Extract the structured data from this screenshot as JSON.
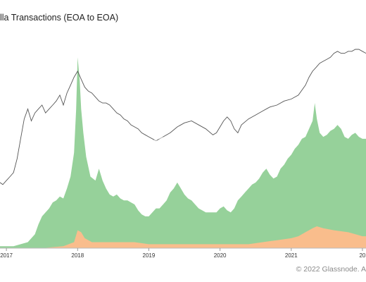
{
  "header": {
    "title": "lla Transactions (EOA to EOA)"
  },
  "watermark": "glassnode",
  "footer": {
    "copyright": "© 2022 Glassnode. A"
  },
  "chart_data": {
    "type": "area",
    "title": "lla Transactions (EOA to EOA)",
    "x_ticks": [
      "2017",
      "2018",
      "2019",
      "2020",
      "2021",
      "20"
    ],
    "x_range": [
      2016.91,
      2022.05
    ],
    "y_axes": {
      "left": {
        "label": "",
        "range": [
          0,
          100
        ]
      },
      "right": {
        "label": "",
        "range": [
          0,
          100
        ]
      }
    },
    "grid": false,
    "legend": "none",
    "series": [
      {
        "type": "area",
        "axis": "left",
        "color": "#96d19a",
        "x": [
          2016.91,
          2017.0,
          2017.1,
          2017.2,
          2017.3,
          2017.4,
          2017.45,
          2017.5,
          2017.55,
          2017.6,
          2017.65,
          2017.7,
          2017.75,
          2017.8,
          2017.85,
          2017.9,
          2017.95,
          2017.98,
          2018.0,
          2018.03,
          2018.05,
          2018.08,
          2018.12,
          2018.18,
          2018.25,
          2018.3,
          2018.35,
          2018.4,
          2018.45,
          2018.5,
          2018.55,
          2018.6,
          2018.65,
          2018.7,
          2018.75,
          2018.8,
          2018.85,
          2018.9,
          2018.95,
          2019.0,
          2019.05,
          2019.1,
          2019.15,
          2019.2,
          2019.25,
          2019.3,
          2019.35,
          2019.4,
          2019.45,
          2019.5,
          2019.55,
          2019.6,
          2019.65,
          2019.7,
          2019.75,
          2019.8,
          2019.85,
          2019.9,
          2019.95,
          2020.0,
          2020.05,
          2020.1,
          2020.15,
          2020.2,
          2020.25,
          2020.3,
          2020.35,
          2020.4,
          2020.45,
          2020.5,
          2020.55,
          2020.6,
          2020.65,
          2020.7,
          2020.75,
          2020.8,
          2020.85,
          2020.9,
          2020.95,
          2021.0,
          2021.05,
          2021.1,
          2021.15,
          2021.2,
          2021.25,
          2021.3,
          2021.33,
          2021.36,
          2021.4,
          2021.45,
          2021.5,
          2021.55,
          2021.6,
          2021.65,
          2021.7,
          2021.75,
          2021.8,
          2021.85,
          2021.9,
          2021.95,
          2022.0,
          2022.05
        ],
        "y": [
          1,
          1,
          1,
          2,
          3,
          7,
          12,
          16,
          18,
          20,
          23,
          24,
          26,
          25,
          30,
          36,
          48,
          70,
          96,
          84,
          70,
          58,
          46,
          36,
          34,
          40,
          34,
          30,
          27,
          26,
          27,
          25,
          24,
          24,
          23,
          22,
          19,
          17,
          16,
          16,
          18,
          20,
          20,
          22,
          24,
          28,
          30,
          33,
          30,
          27,
          25,
          24,
          22,
          20,
          19,
          18,
          18,
          18,
          18,
          20,
          21,
          19,
          18,
          20,
          24,
          26,
          28,
          30,
          32,
          33,
          35,
          38,
          40,
          37,
          35,
          36,
          40,
          42,
          45,
          47,
          50,
          52,
          55,
          56,
          60,
          64,
          73,
          65,
          58,
          56,
          57,
          59,
          60,
          62,
          60,
          56,
          55,
          57,
          58,
          56,
          55,
          55
        ]
      },
      {
        "type": "area",
        "axis": "left",
        "color": "#f9bd8c",
        "x": [
          2016.91,
          2017.5,
          2017.8,
          2017.95,
          2018.0,
          2018.05,
          2018.1,
          2018.2,
          2018.4,
          2018.6,
          2018.8,
          2019.0,
          2019.3,
          2019.6,
          2019.9,
          2020.0,
          2020.2,
          2020.4,
          2020.6,
          2020.8,
          2021.0,
          2021.1,
          2021.2,
          2021.3,
          2021.36,
          2021.45,
          2021.6,
          2021.8,
          2022.0,
          2022.05
        ],
        "y": [
          0,
          0,
          1,
          3,
          9,
          8,
          5,
          3,
          3,
          3,
          3,
          2,
          2,
          2,
          2,
          2,
          2,
          2,
          3,
          4,
          5,
          6,
          8,
          10,
          11,
          10,
          9,
          8,
          6,
          6
        ]
      },
      {
        "type": "line",
        "axis": "right",
        "color": "#555555",
        "x": [
          2016.91,
          2016.95,
          2017.0,
          2017.05,
          2017.1,
          2017.15,
          2017.2,
          2017.25,
          2017.3,
          2017.35,
          2017.4,
          2017.45,
          2017.5,
          2017.55,
          2017.6,
          2017.65,
          2017.7,
          2017.75,
          2017.8,
          2017.85,
          2017.9,
          2017.95,
          2018.0,
          2018.05,
          2018.1,
          2018.15,
          2018.2,
          2018.25,
          2018.3,
          2018.35,
          2018.4,
          2018.45,
          2018.5,
          2018.55,
          2018.6,
          2018.65,
          2018.7,
          2018.75,
          2018.8,
          2018.85,
          2018.9,
          2018.95,
          2019.0,
          2019.1,
          2019.2,
          2019.3,
          2019.4,
          2019.5,
          2019.6,
          2019.7,
          2019.8,
          2019.9,
          2019.95,
          2020.0,
          2020.05,
          2020.1,
          2020.15,
          2020.2,
          2020.25,
          2020.3,
          2020.4,
          2020.5,
          2020.6,
          2020.7,
          2020.8,
          2020.9,
          2021.0,
          2021.1,
          2021.2,
          2021.25,
          2021.3,
          2021.35,
          2021.4,
          2021.45,
          2021.5,
          2021.55,
          2021.6,
          2021.65,
          2021.7,
          2021.75,
          2021.8,
          2021.85,
          2021.9,
          2021.95,
          2022.0,
          2022.05
        ],
        "y": [
          33,
          32,
          34,
          36,
          38,
          45,
          55,
          65,
          70,
          64,
          68,
          70,
          72,
          68,
          70,
          72,
          74,
          77,
          72,
          78,
          82,
          86,
          89,
          85,
          81,
          79,
          78,
          76,
          74,
          73,
          73,
          72,
          70,
          68,
          67,
          65,
          64,
          62,
          61,
          60,
          58,
          57,
          56,
          54,
          56,
          58,
          61,
          63,
          64,
          62,
          60,
          57,
          58,
          61,
          64,
          66,
          64,
          60,
          58,
          62,
          65,
          67,
          69,
          71,
          72,
          74,
          75,
          77,
          82,
          86,
          89,
          91,
          93,
          94,
          95,
          96,
          98,
          99,
          98,
          98,
          99,
          99,
          100,
          100,
          99,
          98
        ]
      }
    ]
  }
}
